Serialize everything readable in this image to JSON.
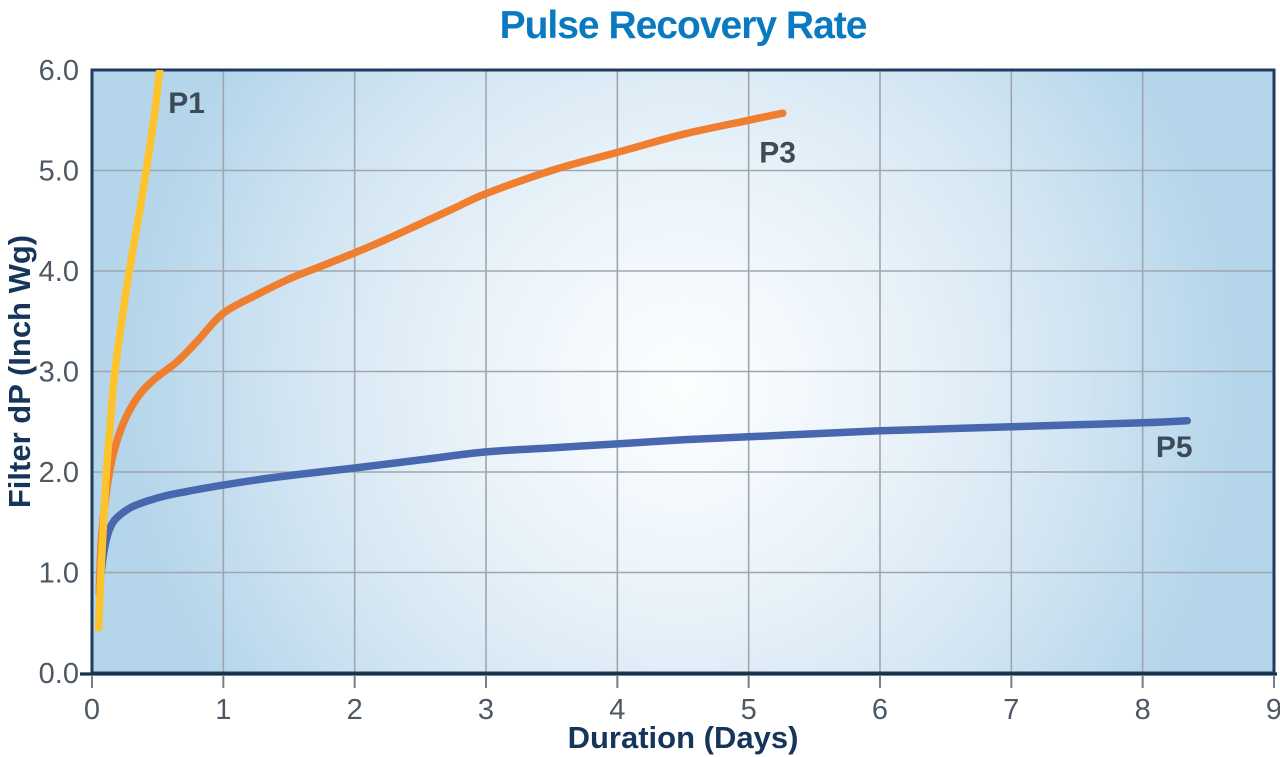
{
  "colors": {
    "title": "#0a7ac0",
    "plot_border": "#1e3c60",
    "axis_line": "#16324f",
    "grid": "#9fa6ad",
    "tick": "#74808b",
    "tick_label": "#4d5964",
    "axis_title": "#16355a",
    "series_label": "#3d4a57",
    "plot_bg_center": "#fcfeff",
    "plot_bg_mid": "#d4e6f3",
    "plot_bg_edge": "#b4d5ea",
    "page_bg": "#ffffff"
  },
  "chart_data": {
    "type": "line",
    "title": "Pulse Recovery Rate",
    "xlabel": "Duration (Days)",
    "ylabel": "Filter dP (Inch Wg)",
    "xlim": [
      0,
      9
    ],
    "ylim": [
      0,
      6
    ],
    "xticks": [
      0,
      1,
      2,
      3,
      4,
      5,
      6,
      7,
      8,
      9
    ],
    "xtick_labels": [
      "0",
      "1",
      "2",
      "3",
      "4",
      "5",
      "6",
      "7",
      "8",
      "9"
    ],
    "yticks": [
      0,
      1,
      2,
      3,
      4,
      5,
      6
    ],
    "ytick_labels": [
      "0.0",
      "1.0",
      "2.0",
      "3.0",
      "4.0",
      "5.0",
      "6.0"
    ],
    "grid": true,
    "legend": "inline-labels",
    "series": [
      {
        "name": "P3",
        "color": "#ef7f2f",
        "label": {
          "text": "P3",
          "x": 5.22,
          "y": 5.18
        },
        "points": [
          [
            0.055,
            0.8
          ],
          [
            0.07,
            1.3
          ],
          [
            0.1,
            1.7
          ],
          [
            0.14,
            2.05
          ],
          [
            0.2,
            2.35
          ],
          [
            0.28,
            2.6
          ],
          [
            0.38,
            2.8
          ],
          [
            0.5,
            2.95
          ],
          [
            0.65,
            3.1
          ],
          [
            0.8,
            3.3
          ],
          [
            1.0,
            3.58
          ],
          [
            1.25,
            3.76
          ],
          [
            1.5,
            3.92
          ],
          [
            1.75,
            4.05
          ],
          [
            2.0,
            4.18
          ],
          [
            2.25,
            4.32
          ],
          [
            2.5,
            4.47
          ],
          [
            2.75,
            4.62
          ],
          [
            3.0,
            4.77
          ],
          [
            3.5,
            5.0
          ],
          [
            4.0,
            5.18
          ],
          [
            4.5,
            5.36
          ],
          [
            5.0,
            5.5
          ],
          [
            5.26,
            5.57
          ]
        ]
      },
      {
        "name": "P5",
        "color": "#4767ae",
        "label": {
          "text": "P5",
          "x": 8.24,
          "y": 2.25
        },
        "points": [
          [
            0.07,
            1.0
          ],
          [
            0.09,
            1.2
          ],
          [
            0.12,
            1.38
          ],
          [
            0.16,
            1.5
          ],
          [
            0.22,
            1.58
          ],
          [
            0.3,
            1.65
          ],
          [
            0.42,
            1.71
          ],
          [
            0.58,
            1.77
          ],
          [
            0.78,
            1.82
          ],
          [
            1.0,
            1.87
          ],
          [
            1.3,
            1.93
          ],
          [
            1.6,
            1.98
          ],
          [
            2.0,
            2.04
          ],
          [
            2.5,
            2.12
          ],
          [
            3.0,
            2.2
          ],
          [
            3.5,
            2.24
          ],
          [
            4.0,
            2.28
          ],
          [
            4.5,
            2.32
          ],
          [
            5.0,
            2.35
          ],
          [
            5.5,
            2.38
          ],
          [
            6.0,
            2.41
          ],
          [
            6.5,
            2.43
          ],
          [
            7.0,
            2.45
          ],
          [
            7.5,
            2.47
          ],
          [
            8.0,
            2.49
          ],
          [
            8.34,
            2.51
          ]
        ]
      },
      {
        "name": "P1",
        "color": "#fdc32d",
        "label": {
          "text": "P1",
          "x": 0.72,
          "y": 5.67
        },
        "points": [
          [
            0.05,
            0.45
          ],
          [
            0.06,
            0.75
          ],
          [
            0.07,
            1.05
          ],
          [
            0.09,
            1.55
          ],
          [
            0.11,
            2.0
          ],
          [
            0.14,
            2.5
          ],
          [
            0.17,
            2.95
          ],
          [
            0.21,
            3.35
          ],
          [
            0.26,
            3.8
          ],
          [
            0.31,
            4.2
          ],
          [
            0.37,
            4.65
          ],
          [
            0.43,
            5.15
          ],
          [
            0.48,
            5.6
          ],
          [
            0.52,
            6.05
          ]
        ]
      }
    ]
  }
}
